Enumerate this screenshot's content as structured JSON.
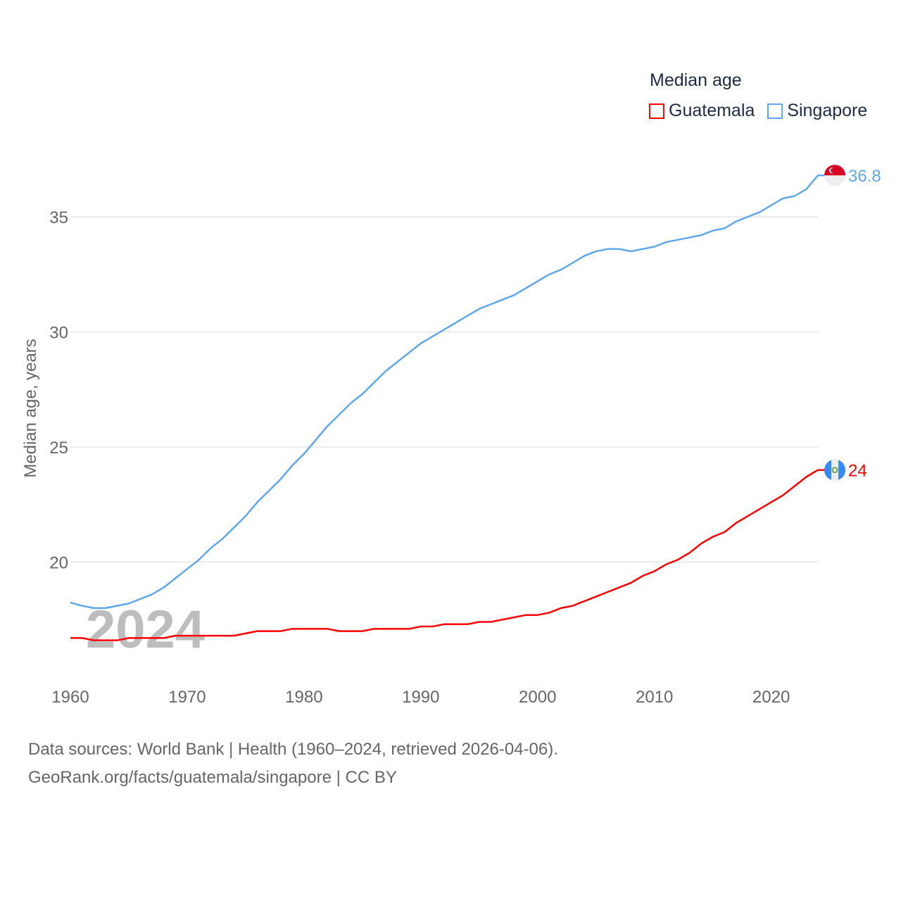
{
  "chart_data": {
    "type": "line",
    "title": "Median age",
    "ylabel": "Median age, years",
    "xlabel": "",
    "xlim": [
      1960,
      2024
    ],
    "ylim": [
      15.6,
      38
    ],
    "yticks": [
      20,
      25,
      30,
      35
    ],
    "xticks": [
      1960,
      1970,
      1980,
      1990,
      2000,
      2010,
      2020
    ],
    "grid": true,
    "legend_position": "top-right",
    "watermark_year": "2024",
    "x": [
      1960,
      1961,
      1962,
      1963,
      1964,
      1965,
      1966,
      1967,
      1968,
      1969,
      1970,
      1971,
      1972,
      1973,
      1974,
      1975,
      1976,
      1977,
      1978,
      1979,
      1980,
      1981,
      1982,
      1983,
      1984,
      1985,
      1986,
      1987,
      1988,
      1989,
      1990,
      1991,
      1992,
      1993,
      1994,
      1995,
      1996,
      1997,
      1998,
      1999,
      2000,
      2001,
      2002,
      2003,
      2004,
      2005,
      2006,
      2007,
      2008,
      2009,
      2010,
      2011,
      2012,
      2013,
      2014,
      2015,
      2016,
      2017,
      2018,
      2019,
      2020,
      2021,
      2022,
      2023,
      2024
    ],
    "series": [
      {
        "name": "Guatemala",
        "color": "#ff0000",
        "end_label": "24",
        "values": [
          16.7,
          16.7,
          16.6,
          16.6,
          16.6,
          16.7,
          16.7,
          16.7,
          16.7,
          16.8,
          16.8,
          16.8,
          16.8,
          16.8,
          16.8,
          16.9,
          17.0,
          17.0,
          17.0,
          17.1,
          17.1,
          17.1,
          17.1,
          17.0,
          17.0,
          17.0,
          17.1,
          17.1,
          17.1,
          17.1,
          17.2,
          17.2,
          17.3,
          17.3,
          17.3,
          17.4,
          17.4,
          17.5,
          17.6,
          17.7,
          17.7,
          17.8,
          18.0,
          18.1,
          18.3,
          18.5,
          18.7,
          18.9,
          19.1,
          19.4,
          19.6,
          19.9,
          20.1,
          20.4,
          20.8,
          21.1,
          21.3,
          21.7,
          22.0,
          22.3,
          22.6,
          22.9,
          23.3,
          23.7,
          24.0
        ]
      },
      {
        "name": "Singapore",
        "color": "#5fa8ee",
        "end_label": "36.8",
        "values": [
          18.24,
          18.1,
          18.0,
          18.0,
          18.1,
          18.2,
          18.4,
          18.6,
          18.9,
          19.3,
          19.7,
          20.1,
          20.6,
          21.0,
          21.5,
          22.0,
          22.6,
          23.1,
          23.6,
          24.2,
          24.7,
          25.3,
          25.9,
          26.4,
          26.9,
          27.3,
          27.8,
          28.3,
          28.7,
          29.1,
          29.5,
          29.8,
          30.1,
          30.4,
          30.7,
          31.0,
          31.2,
          31.4,
          31.6,
          31.9,
          32.2,
          32.5,
          32.7,
          33.0,
          33.3,
          33.5,
          33.6,
          33.6,
          33.5,
          33.6,
          33.7,
          33.9,
          34.0,
          34.1,
          34.2,
          34.4,
          34.5,
          34.8,
          35.0,
          35.2,
          35.5,
          35.8,
          35.9,
          36.2,
          36.8
        ]
      }
    ]
  },
  "legend": {
    "title": "Median age",
    "items": [
      "Guatemala",
      "Singapore"
    ]
  },
  "footer": {
    "source": "Data sources: World Bank | Health (1960–2024, retrieved 2026-04-06).",
    "credit": "GeoRank.org/facts/guatemala/singapore | CC BY"
  }
}
